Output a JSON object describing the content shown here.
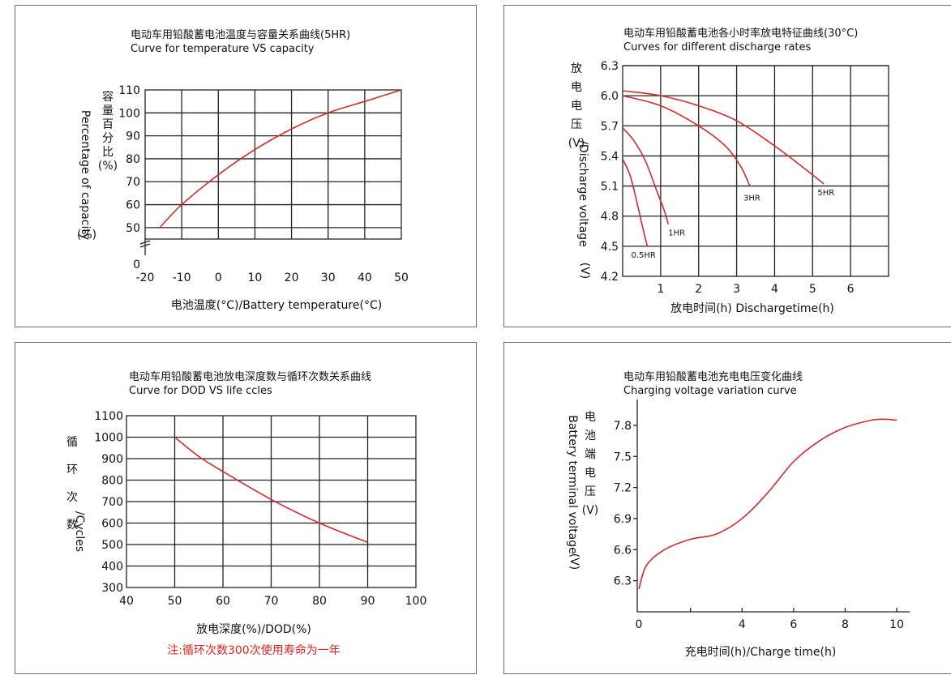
{
  "colors": {
    "curve": "#d42a2a",
    "note": "#e02020",
    "grid": "#222222"
  },
  "chart_data": [
    {
      "type": "line",
      "title": "电动车用铅酸蓄电池温度与容量关系曲线(5HR)",
      "subtitle": "Curve for temperature VS capacity",
      "xlabel": "电池温度(°C)/Battery temperature(°C)",
      "ylabel_cn": [
        "容",
        "量",
        "百",
        "分",
        "比",
        "(%)"
      ],
      "ylabel_en": "Percentage of capacity",
      "ylabel_en2": "(%)",
      "x_ticks": [
        "-20",
        "-10",
        "0",
        "10",
        "20",
        "30",
        "40",
        "50"
      ],
      "y_ticks": [
        "0",
        "50",
        "60",
        "70",
        "80",
        "90",
        "100",
        "110"
      ],
      "xlim": [
        -20,
        50
      ],
      "ylim": [
        45,
        110
      ],
      "y_axis_break": true,
      "grid": true,
      "series": [
        {
          "x": [
            -16,
            -10,
            0,
            10,
            20,
            30,
            40,
            50
          ],
          "y": [
            50,
            60,
            73,
            84,
            93,
            100,
            105,
            110
          ]
        }
      ]
    },
    {
      "type": "line",
      "title": "电动车用铅酸蓄电池各小时率放电特征曲线(30°C)",
      "subtitle": "Curves for different discharge rates",
      "xlabel": "放电时间(h) Dischargetime(h)",
      "ylabel_cn": [
        "放",
        "电",
        "电",
        "压",
        "(V)"
      ],
      "ylabel_en": "/Discharge voltage",
      "ylabel_en2": "(V)",
      "x_ticks": [
        "1",
        "2",
        "3",
        "4",
        "5",
        "6"
      ],
      "y_ticks": [
        "4.2",
        "4.5",
        "4.8",
        "5.1",
        "5.4",
        "5.7",
        "6.0",
        "6.3"
      ],
      "xlim": [
        0,
        7
      ],
      "ylim": [
        4.2,
        6.3
      ],
      "grid": true,
      "series": [
        {
          "name": "0.5HR",
          "x": [
            0,
            0.2,
            0.4,
            0.55,
            0.65
          ],
          "y": [
            5.37,
            5.2,
            4.9,
            4.65,
            4.5
          ]
        },
        {
          "name": "1HR",
          "x": [
            0,
            0.3,
            0.6,
            0.9,
            1.1,
            1.2
          ],
          "y": [
            5.68,
            5.55,
            5.35,
            5.05,
            4.85,
            4.72
          ]
        },
        {
          "name": "3HR",
          "x": [
            0,
            1,
            2,
            2.7,
            3.1,
            3.35
          ],
          "y": [
            6.0,
            5.9,
            5.7,
            5.5,
            5.3,
            5.1
          ]
        },
        {
          "name": "5HR",
          "x": [
            0,
            1,
            2,
            3,
            4,
            4.7,
            5.3
          ],
          "y": [
            6.05,
            6.0,
            5.9,
            5.75,
            5.5,
            5.3,
            5.12
          ]
        }
      ]
    },
    {
      "type": "line",
      "title": "电动车用铅酸蓄电池放电深度数与循环次数关系曲线",
      "subtitle": "Curve for DOD VS life ccles",
      "xlabel": "放电深度(%)/DOD(%)",
      "ylabel_cn": [
        "循",
        "环",
        "次",
        "数"
      ],
      "ylabel_en": "/Cycles",
      "x_ticks": [
        "40",
        "50",
        "60",
        "70",
        "80",
        "90",
        "100"
      ],
      "y_ticks": [
        "300",
        "400",
        "500",
        "600",
        "700",
        "800",
        "900",
        "1000",
        "1100"
      ],
      "xlim": [
        40,
        100
      ],
      "ylim": [
        300,
        1100
      ],
      "grid": true,
      "note": "注:循环次数300次使用寿命为一年",
      "series": [
        {
          "x": [
            50,
            55,
            60,
            70,
            80,
            90
          ],
          "y": [
            1000,
            910,
            840,
            710,
            600,
            510
          ]
        }
      ]
    },
    {
      "type": "line",
      "title": "电动车用铅酸蓄电池充电电压变化曲线",
      "subtitle": "Charging voltage variation curve",
      "xlabel": "充电时间(h)/Charge time(h)",
      "ylabel_cn": [
        "电",
        "池",
        "端",
        "电",
        "压",
        "(V)"
      ],
      "ylabel_en": "Battery terminal voltage",
      "ylabel_en2": "(V)",
      "x_ticks": [
        "0",
        "4",
        "6",
        "8",
        "10"
      ],
      "y_ticks": [
        "6.3",
        "6.6",
        "6.9",
        "7.2",
        "7.5",
        "7.8"
      ],
      "xlim": [
        0,
        10.5
      ],
      "ylim": [
        6.0,
        8.05
      ],
      "grid": false,
      "series": [
        {
          "x": [
            0,
            0.3,
            1,
            2,
            3,
            4,
            5,
            6,
            7,
            8,
            9,
            9.5,
            10
          ],
          "y": [
            6.22,
            6.45,
            6.6,
            6.7,
            6.75,
            6.9,
            7.15,
            7.45,
            7.65,
            7.78,
            7.85,
            7.86,
            7.85
          ]
        }
      ]
    }
  ]
}
